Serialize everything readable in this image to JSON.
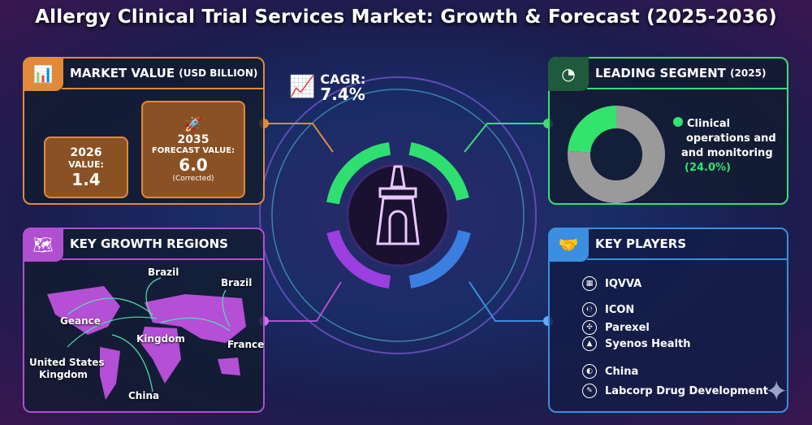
{
  "title": "Allergy Clinical Trial Services Market: Growth & Forecast (2025-2036)",
  "cagr": {
    "label": "CAGR:",
    "value": "7.4%"
  },
  "market_value": {
    "title": "MARKET VALUE",
    "unit": "(USD BILLION)",
    "current": {
      "year": "2026",
      "label": "VALUE:",
      "value": "1.4"
    },
    "forecast": {
      "year": "2035",
      "label": "FORECAST VALUE:",
      "value": "6.0",
      "note": "(Corrected)"
    }
  },
  "leading_segment": {
    "title": "LEADING SEGMENT",
    "year": "(2025)",
    "line1": "Clinical",
    "line2": "operations and",
    "line3": "and monitoring",
    "share_label": "(24.0%)",
    "share": 24,
    "colors": {
      "segment": "#34e36c",
      "rest": "#9a9a9a"
    }
  },
  "regions": {
    "title": "KEY GROWTH REGIONS",
    "labels": [
      "Brazil",
      "Brazil",
      "Geance",
      "Kingdom",
      "France",
      "United States",
      "Kingdom",
      "China"
    ]
  },
  "players": {
    "title": "KEY PLAYERS",
    "items": [
      "IQVVA",
      "ICON",
      "Parexel",
      "Syenos Health",
      "China",
      "Labcorp Drug Development"
    ]
  },
  "colors": {
    "orange": "#e08a3a",
    "green": "#3ddc74",
    "purple": "#b04fd0",
    "blue": "#3a8fe0"
  }
}
